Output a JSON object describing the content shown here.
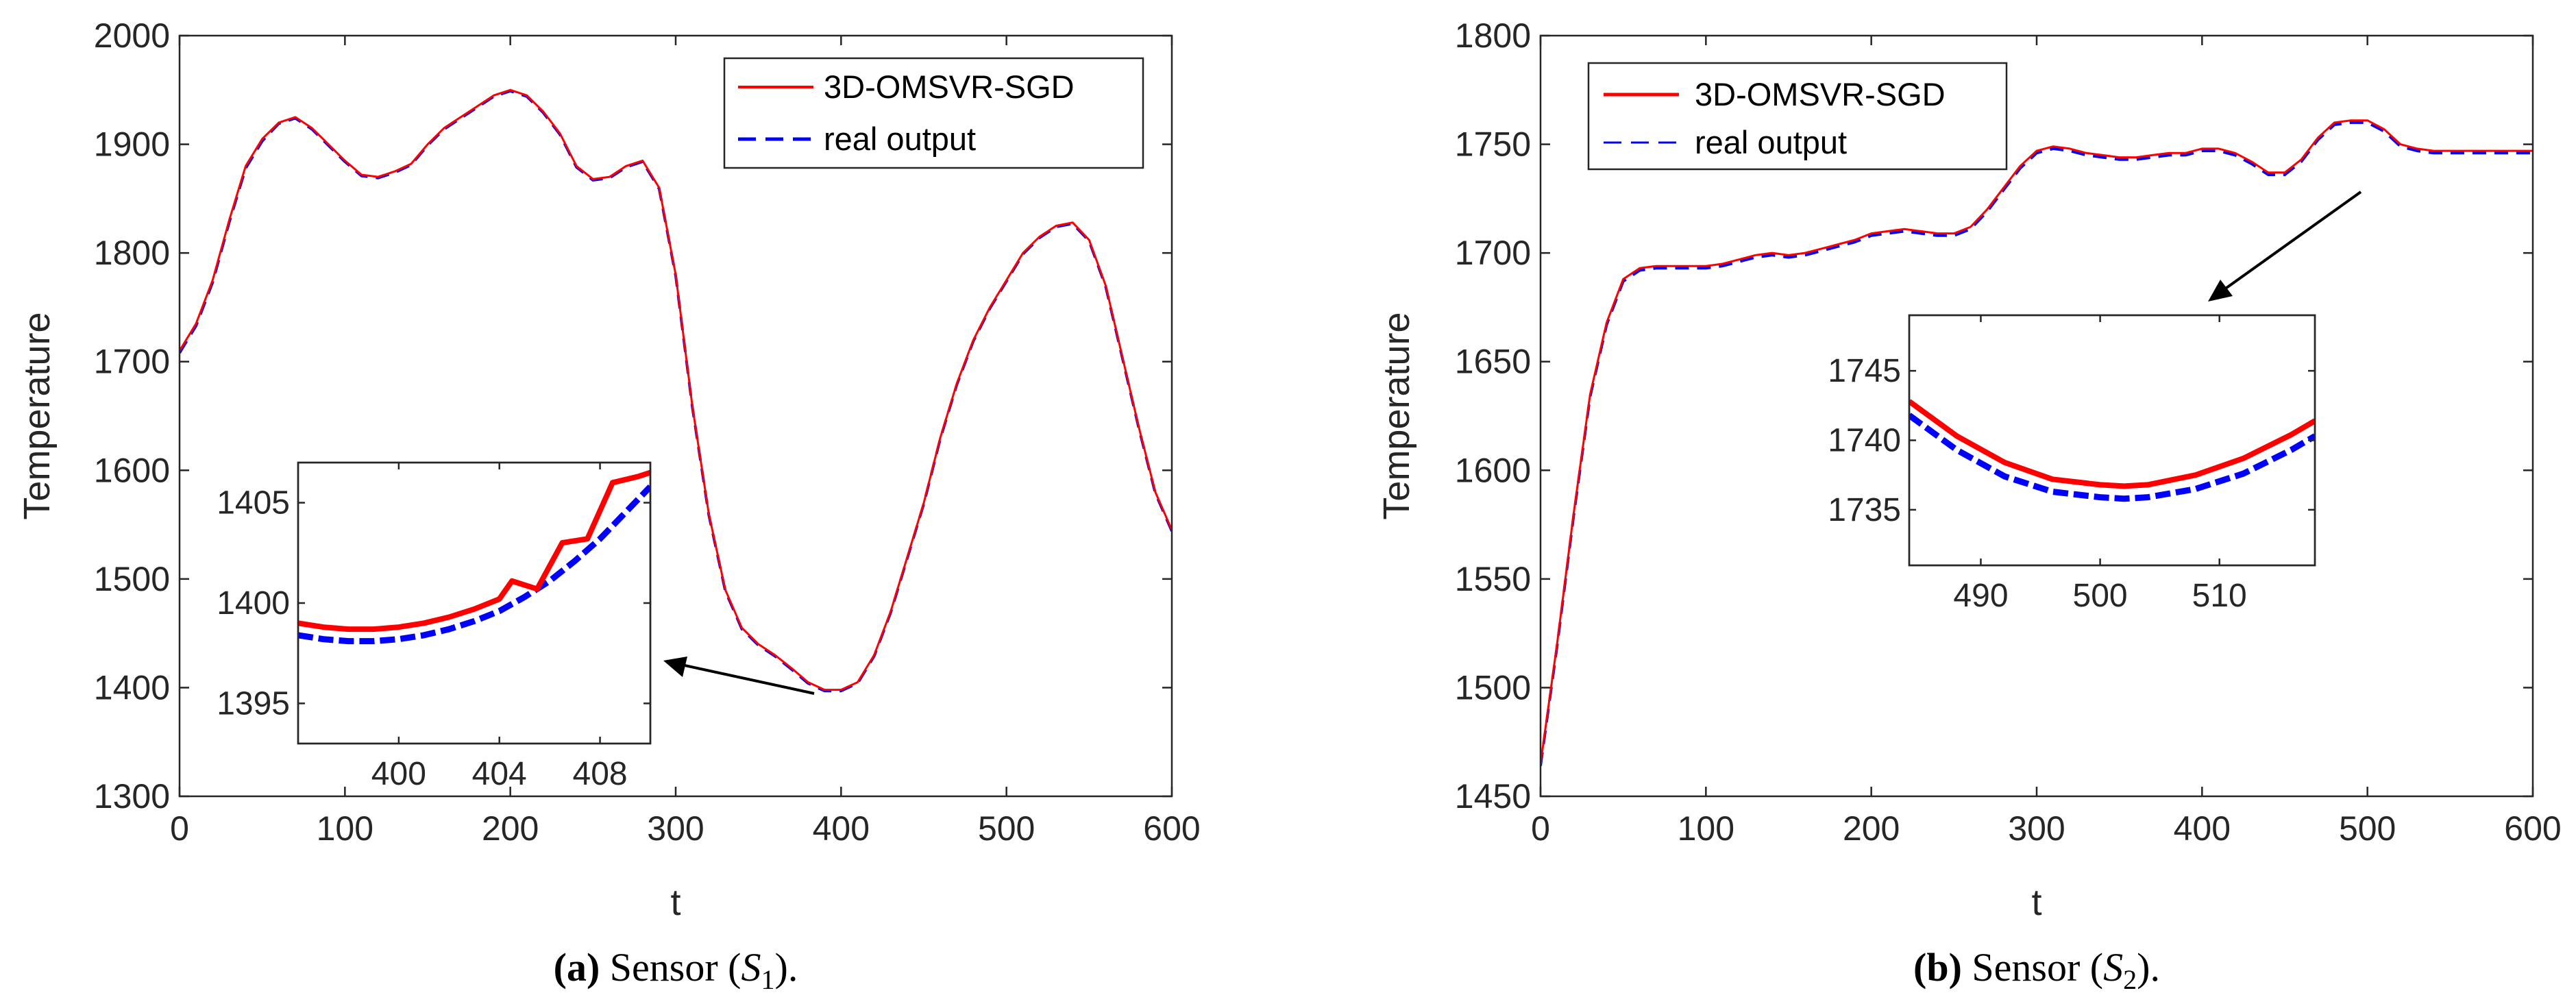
{
  "figure": {
    "colors": {
      "model": "#ff0000",
      "real": "#0000ff",
      "axis": "#262626",
      "arrow": "#000000"
    },
    "panels": [
      {
        "caption": {
          "letter": "(a)",
          "text": " Sensor (",
          "sym": "S",
          "sub": "1",
          "end": ")."
        },
        "legend": {
          "model": "3D-OMSVR-SGD",
          "real": "real output"
        }
      },
      {
        "caption": {
          "letter": "(b)",
          "text": " Sensor (",
          "sym": "S",
          "sub": "2",
          "end": ")."
        },
        "legend": {
          "model": "3D-OMSVR-SGD",
          "real": "real output"
        }
      }
    ]
  },
  "chart_data": [
    {
      "type": "line",
      "title": "",
      "xlabel": "t",
      "ylabel": "Temperature",
      "xlim": [
        0,
        600
      ],
      "ylim": [
        1300,
        2000
      ],
      "xticks": [
        0,
        100,
        200,
        300,
        400,
        500,
        600
      ],
      "yticks": [
        1300,
        1400,
        1500,
        1600,
        1700,
        1800,
        1900,
        2000
      ],
      "legend_position": "top-right",
      "x": [
        0,
        10,
        20,
        30,
        40,
        50,
        60,
        70,
        80,
        90,
        100,
        110,
        120,
        130,
        140,
        150,
        160,
        170,
        180,
        190,
        200,
        210,
        220,
        230,
        240,
        250,
        260,
        270,
        280,
        290,
        300,
        310,
        320,
        330,
        340,
        350,
        360,
        370,
        380,
        390,
        400,
        410,
        420,
        430,
        440,
        450,
        460,
        470,
        480,
        490,
        500,
        510,
        520,
        530,
        540,
        550,
        560,
        570,
        580,
        590,
        600
      ],
      "series": [
        {
          "name": "3D-OMSVR-SGD",
          "style": "solid",
          "values": [
            1710,
            1735,
            1775,
            1830,
            1880,
            1905,
            1920,
            1925,
            1915,
            1900,
            1885,
            1872,
            1870,
            1875,
            1882,
            1900,
            1915,
            1925,
            1935,
            1945,
            1950,
            1945,
            1930,
            1910,
            1880,
            1868,
            1870,
            1880,
            1885,
            1860,
            1780,
            1660,
            1560,
            1490,
            1455,
            1440,
            1430,
            1418,
            1405,
            1398,
            1398,
            1405,
            1430,
            1470,
            1520,
            1570,
            1630,
            1680,
            1720,
            1750,
            1775,
            1800,
            1815,
            1825,
            1828,
            1812,
            1770,
            1705,
            1640,
            1580,
            1545
          ]
        },
        {
          "name": "real output",
          "style": "dashed",
          "values": [
            1708,
            1733,
            1773,
            1828,
            1878,
            1903,
            1919,
            1924,
            1914,
            1899,
            1884,
            1871,
            1869,
            1874,
            1881,
            1899,
            1914,
            1924,
            1934,
            1944,
            1949,
            1944,
            1929,
            1909,
            1879,
            1867,
            1869,
            1879,
            1884,
            1859,
            1779,
            1659,
            1559,
            1489,
            1454,
            1439,
            1429,
            1417,
            1404,
            1397,
            1397,
            1404,
            1429,
            1469,
            1519,
            1569,
            1629,
            1679,
            1719,
            1749,
            1774,
            1799,
            1814,
            1824,
            1827,
            1811,
            1769,
            1704,
            1639,
            1579,
            1544
          ]
        }
      ],
      "inset": {
        "xlim": [
          396,
          410
        ],
        "ylim": [
          1393,
          1407
        ],
        "xticks": [
          400,
          404,
          408
        ],
        "yticks": [
          1395,
          1400,
          1405
        ],
        "series": [
          {
            "name": "3D-OMSVR-SGD",
            "x": [
              396,
              397,
              398,
              399,
              400,
              401,
              402,
              403,
              404,
              404.5,
              405.5,
              406.5,
              407.5,
              408.5,
              409.5,
              410
            ],
            "values": [
              1399.0,
              1398.8,
              1398.7,
              1398.7,
              1398.8,
              1399.0,
              1399.3,
              1399.7,
              1400.2,
              1401.1,
              1400.7,
              1403.0,
              1403.2,
              1406.0,
              1406.3,
              1406.5
            ]
          },
          {
            "name": "real output",
            "x": [
              396,
              397,
              398,
              399,
              400,
              401,
              402,
              403,
              404,
              405,
              406,
              407,
              408,
              409,
              410
            ],
            "values": [
              1398.4,
              1398.2,
              1398.1,
              1398.1,
              1398.2,
              1398.4,
              1398.7,
              1399.1,
              1399.6,
              1400.3,
              1401.1,
              1402.1,
              1403.2,
              1404.5,
              1405.8
            ]
          }
        ]
      }
    },
    {
      "type": "line",
      "title": "",
      "xlabel": "t",
      "ylabel": "Temperature",
      "xlim": [
        0,
        600
      ],
      "ylim": [
        1450,
        1800
      ],
      "xticks": [
        0,
        100,
        200,
        300,
        400,
        500,
        600
      ],
      "yticks": [
        1450,
        1500,
        1550,
        1600,
        1650,
        1700,
        1750,
        1800
      ],
      "legend_position": "top-left",
      "x": [
        0,
        10,
        20,
        30,
        40,
        50,
        60,
        70,
        80,
        90,
        100,
        110,
        120,
        130,
        140,
        150,
        160,
        170,
        180,
        190,
        200,
        210,
        220,
        230,
        240,
        250,
        260,
        270,
        280,
        290,
        300,
        310,
        320,
        330,
        340,
        350,
        360,
        370,
        380,
        390,
        400,
        410,
        420,
        430,
        440,
        450,
        460,
        470,
        480,
        490,
        500,
        510,
        520,
        530,
        540,
        550,
        560,
        570,
        580,
        590,
        600
      ],
      "series": [
        {
          "name": "3D-OMSVR-SGD",
          "style": "solid",
          "values": [
            1465,
            1520,
            1580,
            1635,
            1668,
            1688,
            1693,
            1694,
            1694,
            1694,
            1694,
            1695,
            1697,
            1699,
            1700,
            1699,
            1700,
            1702,
            1704,
            1706,
            1709,
            1710,
            1711,
            1710,
            1709,
            1709,
            1712,
            1720,
            1730,
            1740,
            1747,
            1749,
            1748,
            1746,
            1745,
            1744,
            1744,
            1745,
            1746,
            1746,
            1748,
            1748,
            1746,
            1742,
            1737,
            1737,
            1743,
            1753,
            1760,
            1761,
            1761,
            1757,
            1750,
            1748,
            1747,
            1747,
            1747,
            1747,
            1747,
            1747,
            1747
          ]
        },
        {
          "name": "real output",
          "style": "dashed",
          "values": [
            1464,
            1519,
            1579,
            1634,
            1667,
            1687,
            1692,
            1693,
            1693,
            1693,
            1693,
            1694,
            1696,
            1698,
            1699,
            1698,
            1699,
            1701,
            1703,
            1705,
            1708,
            1709,
            1710,
            1709,
            1708,
            1708,
            1711,
            1719,
            1729,
            1739,
            1746,
            1748,
            1747,
            1745,
            1744,
            1743,
            1743,
            1744,
            1745,
            1745,
            1747,
            1747,
            1745,
            1741,
            1736,
            1736,
            1742,
            1752,
            1759,
            1760,
            1760,
            1756,
            1749,
            1747,
            1746,
            1746,
            1746,
            1746,
            1746,
            1746,
            1746
          ]
        }
      ],
      "inset": {
        "xlim": [
          484,
          518
        ],
        "ylim": [
          1731,
          1749
        ],
        "xticks": [
          490,
          500,
          510
        ],
        "yticks": [
          1735,
          1740,
          1745
        ],
        "series": [
          {
            "name": "3D-OMSVR-SGD",
            "x": [
              484,
              488,
              492,
              496,
              500,
              502,
              504,
              508,
              512,
              516,
              518
            ],
            "values": [
              1742.8,
              1740.3,
              1738.4,
              1737.2,
              1736.8,
              1736.7,
              1736.8,
              1737.5,
              1738.7,
              1740.4,
              1741.4
            ]
          },
          {
            "name": "real output",
            "x": [
              484,
              488,
              492,
              496,
              500,
              502,
              504,
              508,
              512,
              516,
              518
            ],
            "values": [
              1741.8,
              1739.3,
              1737.4,
              1736.3,
              1735.9,
              1735.8,
              1735.9,
              1736.5,
              1737.6,
              1739.3,
              1740.3
            ]
          }
        ]
      }
    }
  ]
}
